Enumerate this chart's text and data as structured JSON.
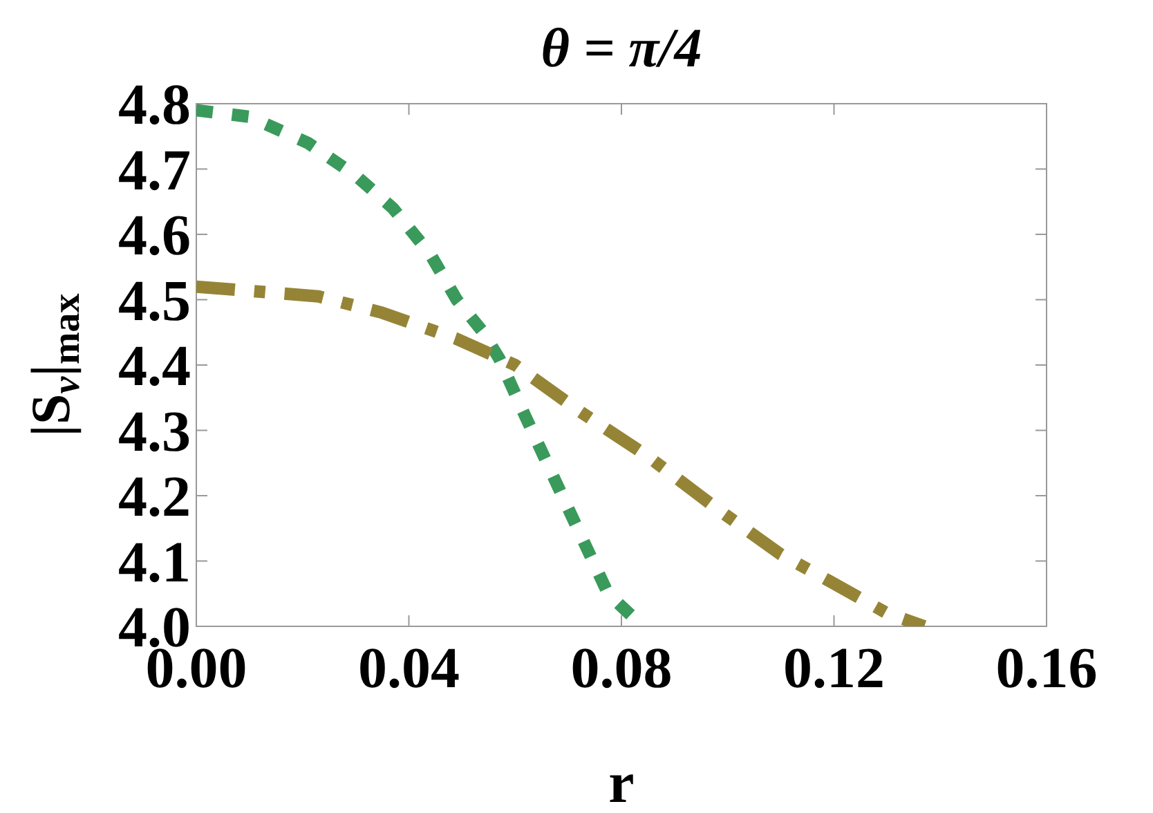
{
  "chart_data": {
    "type": "line",
    "title": "θ = π/4",
    "xlabel": "r",
    "ylabel": "|S$_{v}$|$_{max}$",
    "xlim": [
      0,
      0.16
    ],
    "ylim": [
      4.0,
      4.8
    ],
    "xticks": [
      {
        "value": 0,
        "label": "0.00"
      },
      0.04,
      0.08,
      0.12,
      0.16
    ],
    "yticks": [
      {
        "value": 4,
        "label": "4.0"
      },
      4.1,
      4.2,
      4.3,
      4.4,
      4.5,
      4.6,
      4.7,
      4.8
    ],
    "grid": false,
    "marker": "none",
    "series": [
      {
        "color": "#3a9a5b",
        "line_style": "dotted",
        "x": [
          0,
          0.01,
          0.021,
          0.03,
          0.037,
          0.044,
          0.049,
          0.054,
          0.057,
          0.062,
          0.07,
          0.0775,
          0.084
        ],
        "values": [
          4.79,
          4.78,
          4.74,
          4.69,
          4.64,
          4.57,
          4.5,
          4.45,
          4.41,
          4.32,
          4.18,
          4.05,
          4.0
        ]
      },
      {
        "color": "#968436",
        "line_style": "dashed",
        "x": [
          0,
          0.023,
          0.035,
          0.049,
          0.06,
          0.072,
          0.085,
          0.098,
          0.11,
          0.119,
          0.13,
          0.137
        ],
        "values": [
          4.52,
          4.505,
          4.48,
          4.44,
          4.4,
          4.33,
          4.26,
          4.18,
          4.11,
          4.07,
          4.02,
          4.0
        ]
      }
    ]
  }
}
